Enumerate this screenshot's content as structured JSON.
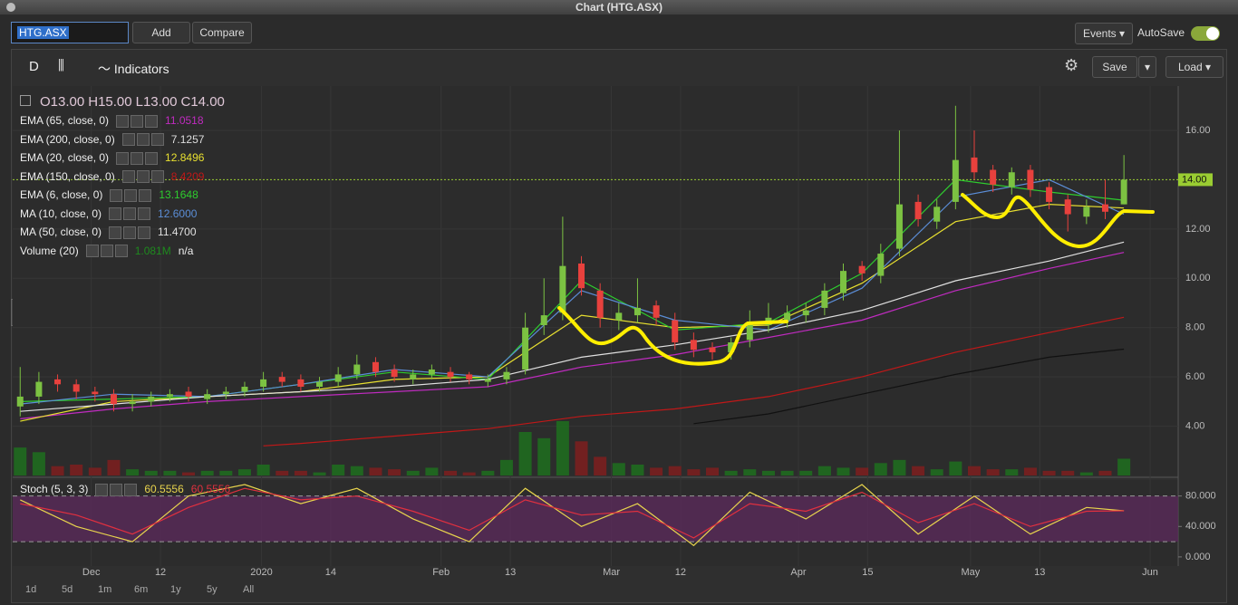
{
  "window_title": "Chart (HTG.ASX)",
  "toolbar": {
    "symbol": "HTG.ASX",
    "add": "Add",
    "compare": "Compare",
    "events": "Events",
    "autosave": "AutoSave"
  },
  "chart_toolbar": {
    "period": "D",
    "indicators": "Indicators",
    "save": "Save",
    "load": "Load"
  },
  "ohlc": [
    {
      "label": "O",
      "value": "13.00"
    },
    {
      "label": "H",
      "value": "15.00"
    },
    {
      "label": "L",
      "value": "13.00"
    },
    {
      "label": "C",
      "value": "14.00"
    }
  ],
  "ranges": [
    "1d",
    "5d",
    "1m",
    "6m",
    "1y",
    "5y",
    "All"
  ],
  "chart_data": [
    {
      "type": "candlestick",
      "up_color": "#7cc242",
      "down_color": "#e8413d",
      "open": [
        4.8,
        5.2,
        5.9,
        5.7,
        5.4,
        5.3,
        4.9,
        5.0,
        5.2,
        5.4,
        5.1,
        5.3,
        5.4,
        5.6,
        6.0,
        5.9,
        5.6,
        5.8,
        6.1,
        6.6,
        6.3,
        5.9,
        6.1,
        6.2,
        6.1,
        5.8,
        5.9,
        6.3,
        8.1,
        8.6,
        10.6,
        9.5,
        8.3,
        8.5,
        8.9,
        8.3,
        7.5,
        7.2,
        7.0,
        7.5,
        8.1,
        8.3,
        8.5,
        8.8,
        9.4,
        10.5,
        10.1,
        11.2,
        13.1,
        12.3,
        13.1,
        14.9,
        14.4,
        13.7,
        14.4,
        13.7,
        13.2,
        12.5,
        13.0,
        13.0
      ],
      "high": [
        6.4,
        6.2,
        6.1,
        5.9,
        5.6,
        5.5,
        5.3,
        5.4,
        5.5,
        5.6,
        5.5,
        5.6,
        5.8,
        6.2,
        6.2,
        6.1,
        6.0,
        6.4,
        6.9,
        6.8,
        6.5,
        6.3,
        6.5,
        6.4,
        6.2,
        6.1,
        6.4,
        8.6,
        10.0,
        12.5,
        10.9,
        9.8,
        9.0,
        10.0,
        9.1,
        8.6,
        7.8,
        7.4,
        7.6,
        8.7,
        9.0,
        8.9,
        9.0,
        9.8,
        10.6,
        10.7,
        11.4,
        16.0,
        13.4,
        13.2,
        17.0,
        16.0,
        14.6,
        14.5,
        14.6,
        13.9,
        13.4,
        13.2,
        14.0,
        15.0
      ],
      "low": [
        4.4,
        4.9,
        5.4,
        5.1,
        5.0,
        4.6,
        4.6,
        4.8,
        5.0,
        5.0,
        4.9,
        5.1,
        5.2,
        5.4,
        5.6,
        5.4,
        5.4,
        5.6,
        5.9,
        6.0,
        5.8,
        5.7,
        5.9,
        5.8,
        5.7,
        5.6,
        5.7,
        6.1,
        7.7,
        8.3,
        9.3,
        8.0,
        7.9,
        8.2,
        8.1,
        7.1,
        6.8,
        6.7,
        6.7,
        7.2,
        7.8,
        8.0,
        8.2,
        8.5,
        9.1,
        9.9,
        9.8,
        10.9,
        12.1,
        12.0,
        12.8,
        14.0,
        13.5,
        13.4,
        13.3,
        12.8,
        11.9,
        12.2,
        12.4,
        13.0
      ],
      "close": [
        5.2,
        5.8,
        5.7,
        5.4,
        5.3,
        4.9,
        5.0,
        5.2,
        5.3,
        5.2,
        5.3,
        5.4,
        5.6,
        5.9,
        5.8,
        5.6,
        5.8,
        6.1,
        6.5,
        6.2,
        6.0,
        6.1,
        6.3,
        6.0,
        5.9,
        5.9,
        6.2,
        8.0,
        8.5,
        10.5,
        9.6,
        8.4,
        8.6,
        8.8,
        8.4,
        7.4,
        7.1,
        7.0,
        7.4,
        8.2,
        8.4,
        8.6,
        8.7,
        9.5,
        10.3,
        10.2,
        11.0,
        13.0,
        12.4,
        12.9,
        14.8,
        14.3,
        13.8,
        14.3,
        13.6,
        13.1,
        12.6,
        12.9,
        12.7,
        14.0
      ],
      "xlim": [
        -0.4,
        61.9
      ],
      "xticks": [
        {
          "value": 3.8,
          "label": "Dec"
        },
        {
          "value": 7.5,
          "label": "12"
        },
        {
          "value": 12.9,
          "label": "2020"
        },
        {
          "value": 16.6,
          "label": "14"
        },
        {
          "value": 22.5,
          "label": "Feb"
        },
        {
          "value": 26.2,
          "label": "13"
        },
        {
          "value": 31.6,
          "label": "Mar"
        },
        {
          "value": 35.3,
          "label": "12"
        },
        {
          "value": 41.6,
          "label": "Apr"
        },
        {
          "value": 45.3,
          "label": "15"
        },
        {
          "value": 50.8,
          "label": "May"
        },
        {
          "value": 54.5,
          "label": "13"
        },
        {
          "value": 60.4,
          "label": "Jun"
        }
      ],
      "ylim": [
        2,
        17.8
      ],
      "yticks": [
        {
          "value": 4,
          "label": "4.00"
        },
        {
          "value": 6,
          "label": "6.00"
        },
        {
          "value": 8,
          "label": "8.00"
        },
        {
          "value": 10,
          "label": "10.00"
        },
        {
          "value": 12,
          "label": "12.00"
        },
        {
          "value": 16,
          "label": "16.00"
        }
      ],
      "last_price": {
        "value": 14,
        "label": "14.00"
      },
      "series": [
        {
          "name": "EMA (65, close, 0)",
          "color": "#c02bc0",
          "value_label": "11.0518",
          "x": [
            0,
            5,
            10,
            15,
            20,
            25,
            30,
            35,
            40,
            45,
            50,
            55,
            59
          ],
          "values": [
            4.3,
            4.7,
            5.0,
            5.2,
            5.4,
            5.6,
            6.4,
            6.9,
            7.6,
            8.3,
            9.5,
            10.4,
            11.0518
          ]
        },
        {
          "name": "EMA (200, close, 0)",
          "color": "#111111",
          "value_label": "7.1257",
          "x": [
            36,
            40,
            45,
            50,
            55,
            59
          ],
          "values": [
            4.1,
            4.5,
            5.3,
            6.1,
            6.8,
            7.1257
          ]
        },
        {
          "name": "EMA (20, close, 0)",
          "color": "#e8e030",
          "value_label": "12.8496",
          "x": [
            0,
            5,
            10,
            15,
            20,
            25,
            30,
            35,
            40,
            45,
            50,
            55,
            59
          ],
          "values": [
            4.2,
            5.0,
            5.2,
            5.4,
            5.9,
            6.0,
            8.5,
            8.0,
            8.1,
            9.8,
            12.3,
            13.0,
            12.8496
          ]
        },
        {
          "name": "EMA (150, close, 0)",
          "color": "#c01818",
          "value_label": "8.4209",
          "x": [
            13,
            15,
            20,
            25,
            30,
            35,
            40,
            45,
            50,
            55,
            59
          ],
          "values": [
            3.2,
            3.3,
            3.6,
            3.9,
            4.4,
            4.7,
            5.2,
            6.0,
            7.0,
            7.8,
            8.4209
          ]
        },
        {
          "name": "EMA (6, close, 0)",
          "color": "#2ecc2e",
          "value_label": "13.1648",
          "x": [
            0,
            5,
            10,
            15,
            20,
            25,
            30,
            35,
            40,
            45,
            50,
            55,
            59
          ],
          "values": [
            5.0,
            5.1,
            5.2,
            5.7,
            6.2,
            5.9,
            9.9,
            7.9,
            8.2,
            10.2,
            14.0,
            13.5,
            13.1648
          ]
        },
        {
          "name": "MA (10, close, 0)",
          "color": "#5b8dd6",
          "value_label": "12.6000",
          "x": [
            0,
            5,
            10,
            15,
            20,
            25,
            30,
            35,
            40,
            45,
            50,
            55,
            59
          ],
          "values": [
            4.9,
            5.3,
            5.2,
            5.7,
            6.3,
            6.0,
            9.5,
            8.3,
            7.9,
            9.6,
            13.3,
            14.0,
            12.6
          ]
        },
        {
          "name": "MA (50, close, 0)",
          "color": "#e0e0e0",
          "value_label": "11.4700",
          "x": [
            0,
            5,
            10,
            15,
            20,
            25,
            30,
            35,
            40,
            45,
            50,
            55,
            59
          ],
          "values": [
            4.6,
            4.9,
            5.2,
            5.4,
            5.6,
            5.9,
            6.8,
            7.3,
            7.9,
            8.7,
            9.9,
            10.7,
            11.47
          ]
        }
      ],
      "volume": {
        "name": "Volume (20)",
        "color": "#1e8a1e",
        "value_label": "1.081M",
        "note": "n/a",
        "values": [
          1.8,
          1.5,
          0.6,
          0.7,
          0.5,
          1.0,
          0.4,
          0.3,
          0.3,
          0.2,
          0.3,
          0.3,
          0.4,
          0.7,
          0.3,
          0.3,
          0.2,
          0.7,
          0.6,
          0.5,
          0.4,
          0.3,
          0.5,
          0.3,
          0.2,
          0.3,
          1.0,
          2.8,
          2.4,
          3.5,
          2.2,
          1.2,
          0.8,
          0.7,
          0.5,
          0.6,
          0.4,
          0.5,
          0.3,
          0.4,
          0.3,
          0.3,
          0.3,
          0.6,
          0.5,
          0.5,
          0.8,
          1.0,
          0.6,
          0.4,
          0.9,
          0.6,
          0.4,
          0.4,
          0.5,
          0.3,
          0.3,
          0.2,
          0.3,
          1.081
        ]
      }
    },
    {
      "type": "line",
      "title": "Stoch (5, 3, 3)",
      "band": [
        20,
        80
      ],
      "band_color": "#5a2a5a",
      "x": [
        0,
        3,
        6,
        9,
        12,
        15,
        18,
        21,
        24,
        27,
        30,
        33,
        36,
        39,
        42,
        45,
        48,
        51,
        54,
        57,
        59
      ],
      "ylim": [
        -12,
        101
      ],
      "yticks": [
        {
          "value": 0,
          "label": "0.000"
        },
        {
          "value": 40,
          "label": "40.000"
        },
        {
          "value": 80,
          "label": "80.000"
        }
      ],
      "series": [
        {
          "color": "#e8d44d",
          "value_label": "60.5556",
          "values": [
            75,
            40,
            20,
            80,
            95,
            70,
            90,
            50,
            20,
            90,
            40,
            70,
            15,
            85,
            50,
            95,
            30,
            80,
            30,
            65,
            60.5556
          ]
        },
        {
          "color": "#e0303f",
          "value_label": "60.5556",
          "values": [
            70,
            55,
            30,
            65,
            90,
            75,
            80,
            60,
            35,
            75,
            55,
            60,
            25,
            70,
            60,
            85,
            45,
            70,
            40,
            60,
            60.5556
          ]
        }
      ]
    }
  ]
}
